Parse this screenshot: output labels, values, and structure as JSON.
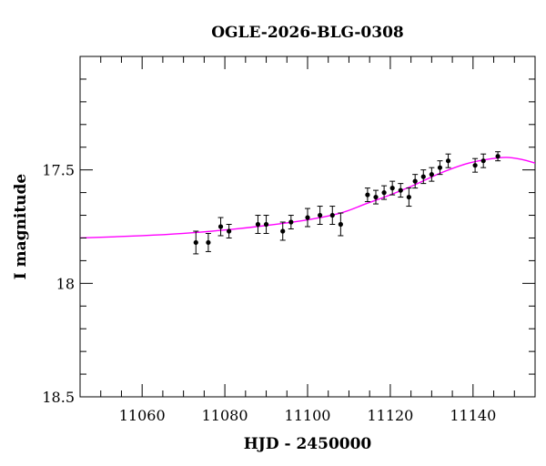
{
  "chart_data": {
    "type": "scatter",
    "title": "OGLE-2026-BLG-0308",
    "xlabel": "HJD - 2450000",
    "ylabel": "I magnitude",
    "xlim": [
      11045,
      11155
    ],
    "ylim": [
      18.5,
      17.0
    ],
    "y_inverted": true,
    "grid": false,
    "x_ticks": [
      11060,
      11080,
      11100,
      11120,
      11140
    ],
    "y_ticks": [
      17.5,
      18,
      18.5
    ],
    "x_tick_labels": [
      "11060",
      "11080",
      "11100",
      "11120",
      "11140"
    ],
    "y_tick_labels": [
      "17.5",
      "18",
      "18.5"
    ],
    "series": [
      {
        "kind": "points",
        "color": "#000000",
        "points": [
          {
            "x": 11073.0,
            "y": 17.82,
            "err": 0.05
          },
          {
            "x": 11076.0,
            "y": 17.82,
            "err": 0.04
          },
          {
            "x": 11079.0,
            "y": 17.75,
            "err": 0.04
          },
          {
            "x": 11081.0,
            "y": 17.77,
            "err": 0.03
          },
          {
            "x": 11088.0,
            "y": 17.74,
            "err": 0.04
          },
          {
            "x": 11090.0,
            "y": 17.74,
            "err": 0.04
          },
          {
            "x": 11094.0,
            "y": 17.77,
            "err": 0.04
          },
          {
            "x": 11096.0,
            "y": 17.73,
            "err": 0.03
          },
          {
            "x": 11100.0,
            "y": 17.71,
            "err": 0.04
          },
          {
            "x": 11103.0,
            "y": 17.7,
            "err": 0.04
          },
          {
            "x": 11106.0,
            "y": 17.7,
            "err": 0.04
          },
          {
            "x": 11108.0,
            "y": 17.74,
            "err": 0.05
          },
          {
            "x": 11114.5,
            "y": 17.61,
            "err": 0.03
          },
          {
            "x": 11116.5,
            "y": 17.62,
            "err": 0.03
          },
          {
            "x": 11118.5,
            "y": 17.6,
            "err": 0.03
          },
          {
            "x": 11120.5,
            "y": 17.58,
            "err": 0.03
          },
          {
            "x": 11122.5,
            "y": 17.59,
            "err": 0.03
          },
          {
            "x": 11124.5,
            "y": 17.62,
            "err": 0.04
          },
          {
            "x": 11126.0,
            "y": 17.55,
            "err": 0.03
          },
          {
            "x": 11128.0,
            "y": 17.53,
            "err": 0.03
          },
          {
            "x": 11130.0,
            "y": 17.52,
            "err": 0.03
          },
          {
            "x": 11132.0,
            "y": 17.49,
            "err": 0.03
          },
          {
            "x": 11134.0,
            "y": 17.46,
            "err": 0.03
          },
          {
            "x": 11140.5,
            "y": 17.48,
            "err": 0.03
          },
          {
            "x": 11142.5,
            "y": 17.46,
            "err": 0.03
          },
          {
            "x": 11146.0,
            "y": 17.44,
            "err": 0.02
          }
        ]
      },
      {
        "kind": "model",
        "color": "#ff00ff",
        "points": [
          {
            "x": 11045,
            "y": 17.8
          },
          {
            "x": 11060,
            "y": 17.79
          },
          {
            "x": 11070,
            "y": 17.78
          },
          {
            "x": 11080,
            "y": 17.765
          },
          {
            "x": 11090,
            "y": 17.745
          },
          {
            "x": 11100,
            "y": 17.72
          },
          {
            "x": 11108,
            "y": 17.69
          },
          {
            "x": 11114,
            "y": 17.65
          },
          {
            "x": 11120,
            "y": 17.61
          },
          {
            "x": 11126,
            "y": 17.565
          },
          {
            "x": 11132,
            "y": 17.515
          },
          {
            "x": 11138,
            "y": 17.475
          },
          {
            "x": 11143,
            "y": 17.455
          },
          {
            "x": 11148,
            "y": 17.445
          },
          {
            "x": 11152,
            "y": 17.455
          },
          {
            "x": 11155,
            "y": 17.47
          }
        ]
      }
    ]
  }
}
